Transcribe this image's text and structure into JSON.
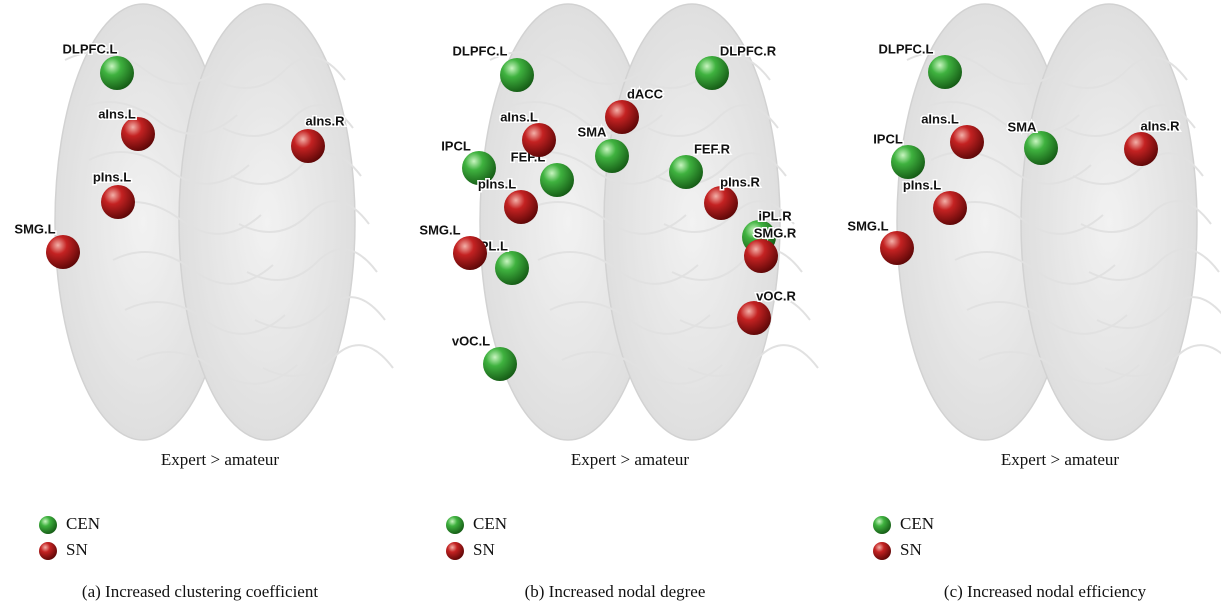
{
  "panels": [
    {
      "subtitle": "Expert > amateur",
      "caption": "(a)  Increased clustering coefficient",
      "networks": [
        {
          "label": "CEN",
          "color": "#2e9e2e",
          "nodes": [
            "DLPFC.L"
          ]
        },
        {
          "label": "SN",
          "color": "#b01818",
          "nodes": [
            "aIns.L",
            "aIns.R",
            "pIns.L",
            "SMG.L"
          ]
        }
      ]
    },
    {
      "subtitle": "Expert > amateur",
      "caption": "(b)  Increased nodal degree",
      "networks": [
        {
          "label": "CEN",
          "color": "#2e9e2e",
          "nodes": [
            "DLPFC.L",
            "DLPFC.R",
            "SMA",
            "IPCL",
            "FEF.L",
            "FEF.R",
            "iPL.R",
            "iPL.L",
            "vOC.L"
          ]
        },
        {
          "label": "SN",
          "color": "#b01818",
          "nodes": [
            "dACC",
            "aIns.L",
            "pIns.L",
            "pIns.R",
            "SMG.R",
            "SMG.L",
            "vOC.R"
          ]
        }
      ]
    },
    {
      "subtitle": "Expert > amateur",
      "caption": "(c)  Increased nodal efficiency",
      "networks": [
        {
          "label": "CEN",
          "color": "#2e9e2e",
          "nodes": [
            "DLPFC.L",
            "SMA",
            "IPCL"
          ]
        },
        {
          "label": "SN",
          "color": "#b01818",
          "nodes": [
            "aIns.L",
            "aIns.R",
            "pIns.L",
            "SMG.L"
          ]
        }
      ]
    }
  ]
}
